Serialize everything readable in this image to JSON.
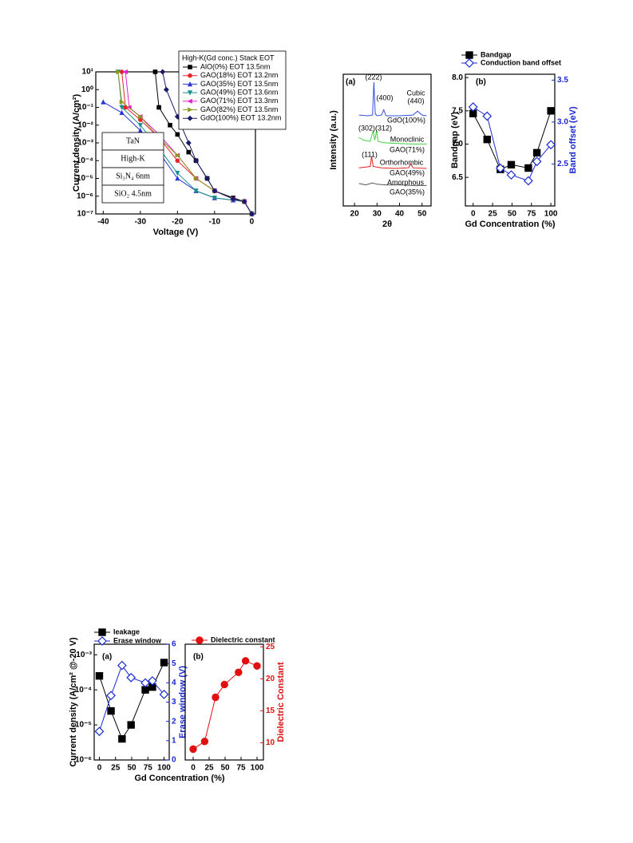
{
  "chart_data": [
    {
      "type": "line",
      "log_y": true,
      "x_label": "Voltage (V)",
      "y_label": "Current density (A/cm²)",
      "xlim": [
        -42,
        1
      ],
      "xticks": [
        -40,
        -30,
        -20,
        -10,
        0
      ],
      "ylim": [
        1e-07,
        10
      ],
      "yticks": [
        {
          "value": 10,
          "label": "10¹"
        },
        {
          "value": 1,
          "label": "10⁰"
        },
        {
          "value": 0.1,
          "label": "10⁻¹"
        },
        {
          "value": 0.01,
          "label": "10⁻²"
        },
        {
          "value": 0.001,
          "label": "10⁻³"
        },
        {
          "value": 0.0001,
          "label": "10⁻⁴"
        },
        {
          "value": 1e-05,
          "label": "10⁻⁵"
        },
        {
          "value": 1e-06,
          "label": "10⁻⁶"
        },
        {
          "value": 1e-07,
          "label": "10⁻⁷"
        }
      ],
      "legend_title": "High-K(Gd conc.) Stack EOT",
      "inset": [
        "TaN",
        "High-K",
        "Si₃N₄ 6nm",
        "SiO₂ 4.5nm"
      ],
      "series": [
        {
          "name": "AlO(0%) EOT 13.5nm",
          "color": "#000000",
          "marker": "square",
          "x": [
            -26,
            -25,
            -22,
            -20,
            -17,
            -15,
            -12,
            -10,
            -5,
            -2,
            0
          ],
          "values": [
            10,
            0.1,
            0.01,
            0.003,
            0.0003,
            0.0001,
            1e-05,
            2e-06,
            8e-07,
            5e-07,
            1e-07
          ]
        },
        {
          "name": "GAO(18%) EOT 13.2nm",
          "color": "#e8242a",
          "marker": "circle",
          "x": [
            -35,
            -34,
            -30,
            -25,
            -20,
            -15,
            -10,
            -5,
            -2,
            0
          ],
          "values": [
            10,
            0.1,
            0.02,
            0.002,
            0.0001,
            1e-05,
            2e-06,
            7e-07,
            5e-07,
            1e-07
          ]
        },
        {
          "name": "GAO(35%) EOT 13.5nm",
          "color": "#2a36d8",
          "marker": "triangle-up",
          "x": [
            -40,
            -35,
            -30,
            -25,
            -20,
            -15,
            -10,
            -5,
            -2,
            0
          ],
          "values": [
            0.2,
            0.05,
            0.005,
            0.0003,
            1e-05,
            2e-06,
            8e-07,
            6e-07,
            5e-07,
            1e-07
          ]
        },
        {
          "name": "GAO(49%) EOT 13.6nm",
          "color": "#1a8f8f",
          "marker": "triangle-down",
          "x": [
            -36,
            -35,
            -30,
            -25,
            -20,
            -15,
            -10,
            -5,
            -2,
            0
          ],
          "values": [
            10,
            0.1,
            0.01,
            0.0005,
            2e-05,
            2e-06,
            8e-07,
            6e-07,
            5e-07,
            1e-07
          ]
        },
        {
          "name": "GAO(71%) EOT 13.3nm",
          "color": "#e020d0",
          "marker": "triangle-left",
          "x": [
            -34,
            -33,
            -30,
            -25,
            -20,
            -15,
            -10,
            -5,
            -2,
            0
          ],
          "values": [
            10,
            0.1,
            0.03,
            0.003,
            0.0002,
            1e-05,
            2e-06,
            7e-07,
            5e-07,
            1e-07
          ]
        },
        {
          "name": "GAO(82%) EOT 13.5nm",
          "color": "#8a9a1a",
          "marker": "triangle-right",
          "x": [
            -36,
            -35,
            -30,
            -25,
            -20,
            -15,
            -10,
            -5,
            -2,
            0
          ],
          "values": [
            10,
            0.2,
            0.03,
            0.002,
            0.0002,
            1e-05,
            2e-06,
            7e-07,
            5e-07,
            1e-07
          ]
        },
        {
          "name": "GdO(100%) EOT 13.2nm",
          "color": "#1a1a6a",
          "marker": "diamond",
          "x": [
            -24,
            -23,
            -20,
            -17,
            -15,
            -12,
            -10,
            -5,
            -2,
            0
          ],
          "values": [
            10,
            1,
            0.03,
            0.001,
            0.0001,
            1e-05,
            2e-06,
            7e-07,
            5e-07,
            1e-07
          ]
        }
      ]
    },
    {
      "type": "line",
      "panel_label": "(a)",
      "x_label": "2θ",
      "y_label": "Intensity (a.u.)",
      "xlim": [
        15,
        54
      ],
      "xticks": [
        20,
        30,
        40,
        50
      ],
      "ylim": [
        0,
        10
      ],
      "annotations": [
        "(222)",
        "(400)",
        "Cubic",
        "(440)",
        "(302)(312)",
        "Monoclinic",
        "(111)",
        "Orthorhombic",
        "Amorphous"
      ],
      "series": [
        {
          "name": "GdO(100%)",
          "color": "#3050e0",
          "x": [
            22,
            26,
            28,
            28.6,
            29.2,
            30,
            32,
            33,
            34,
            40,
            46,
            48,
            50,
            52
          ],
          "values": [
            6.9,
            6.85,
            6.9,
            9.4,
            7.0,
            6.85,
            6.9,
            7.3,
            6.85,
            6.85,
            6.9,
            7.2,
            6.9,
            6.85
          ]
        },
        {
          "name": "GAO(71%)",
          "color": "#40d040",
          "x": [
            22,
            24,
            27,
            28.3,
            29,
            29.8,
            30.5,
            33,
            38,
            45,
            52
          ],
          "values": [
            5.2,
            5.0,
            4.9,
            5.7,
            5.0,
            5.7,
            4.9,
            4.8,
            4.75,
            4.7,
            4.7
          ]
        },
        {
          "name": "GAO(49%)",
          "color": "#e02020",
          "x": [
            22,
            25,
            27,
            27.6,
            28.3,
            32,
            38,
            44,
            45,
            46,
            52
          ],
          "values": [
            2.9,
            2.95,
            3.0,
            3.75,
            3.0,
            2.9,
            2.85,
            2.9,
            3.2,
            2.9,
            2.85
          ]
        },
        {
          "name": "GAO(35%)",
          "color": "#555555",
          "x": [
            22,
            25,
            28,
            30,
            34,
            40,
            46,
            52
          ],
          "values": [
            1.7,
            1.6,
            1.75,
            1.65,
            1.6,
            1.6,
            1.55,
            1.55
          ]
        }
      ]
    },
    {
      "type": "line",
      "panel_label": "(b)",
      "x_label": "Gd Concentration (%)",
      "y_label": "Bandgap (eV)",
      "y2_label": "Band offset (eV)",
      "y2_color": "#1a2ad0",
      "xlim": [
        -10,
        105
      ],
      "xticks": [
        0,
        25,
        50,
        75,
        100
      ],
      "ylim": [
        6.07,
        8.05
      ],
      "yticks": [
        6.5,
        {
          "value": 7,
          "label": "7.0"
        },
        7.5,
        {
          "value": 8,
          "label": "8.0"
        }
      ],
      "y2lim": [
        2.0,
        3.57
      ],
      "y2ticks": [
        2.5,
        {
          "value": 3,
          "label": "3.0"
        },
        3.5
      ],
      "series": [
        {
          "name": "Bandgap",
          "color": "#000000",
          "marker": "square",
          "x": [
            0,
            18,
            35,
            49,
            71,
            82,
            100
          ],
          "values": [
            7.46,
            7.07,
            6.62,
            6.69,
            6.64,
            6.87,
            7.5
          ]
        },
        {
          "name": "Conduction band offset",
          "color": "#1a2ad0",
          "marker": "open-diamond",
          "axis": "y2",
          "x": [
            0,
            18,
            35,
            49,
            71,
            82,
            100
          ],
          "values": [
            3.18,
            3.07,
            2.45,
            2.37,
            2.3,
            2.53,
            2.73
          ]
        }
      ]
    },
    {
      "type": "line",
      "panel_label": "(a)",
      "log_y": true,
      "x_label": "Gd Concentration (%)",
      "y_label": "Current density (A/cm² @-20 V)",
      "y2_label": "Erase window (V)",
      "y2_color": "#1a2ad0",
      "xlim": [
        -8,
        108
      ],
      "xticks": [
        0,
        25,
        50,
        75,
        100
      ],
      "ylim": [
        1e-06,
        0.002
      ],
      "yticks": [
        {
          "value": 0.001,
          "label": "10⁻³"
        },
        {
          "value": 0.0001,
          "label": "10⁻⁴"
        },
        {
          "value": 1e-05,
          "label": "10⁻⁵"
        },
        {
          "value": 1e-06,
          "label": "10⁻⁶"
        }
      ],
      "y2lim": [
        0,
        6
      ],
      "y2ticks": [
        0,
        1,
        2,
        3,
        4,
        5,
        6
      ],
      "series": [
        {
          "name": "leakage",
          "color": "#000000",
          "marker": "square",
          "x": [
            0,
            18,
            35,
            49,
            71,
            82,
            100
          ],
          "values": [
            0.00025,
            2.5e-05,
            4e-06,
            1e-05,
            0.0001,
            0.00012,
            0.0006
          ]
        },
        {
          "name": "Erase window",
          "color": "#1a2ad0",
          "marker": "open-diamond",
          "axis": "y2",
          "x": [
            0,
            18,
            35,
            49,
            71,
            82,
            100
          ],
          "values": [
            1.48,
            3.34,
            4.9,
            4.27,
            4.0,
            4.1,
            3.4
          ]
        }
      ]
    },
    {
      "type": "line",
      "panel_label": "(b)",
      "y2_label": "Dielectric Constant",
      "y2_color": "#e01010",
      "xlim": [
        -12.5,
        110
      ],
      "xticks": [
        0,
        25,
        50,
        75,
        100
      ],
      "y2lim": [
        7.3,
        25.4
      ],
      "y2ticks": [
        10,
        15,
        20,
        25
      ],
      "series": [
        {
          "name": "Dielectric constant",
          "color": "#e01010",
          "marker": "circle",
          "axis": "y2",
          "x": [
            0,
            18,
            35,
            49,
            71,
            82,
            100
          ],
          "values": [
            9.0,
            10.2,
            17.1,
            19.1,
            21,
            22.8,
            22
          ]
        }
      ]
    }
  ]
}
